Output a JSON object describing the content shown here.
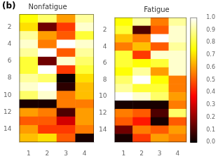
{
  "chart_data": [
    {
      "type": "heatmap",
      "title": "Nonfatigue",
      "annotations": [
        "(b)"
      ],
      "x": [
        1,
        2,
        3,
        4
      ],
      "y": [
        1,
        2,
        3,
        4,
        5,
        6,
        7,
        8,
        9,
        10,
        11,
        12,
        13,
        14,
        15
      ],
      "xlim": [
        0.5,
        4.5
      ],
      "xticks": [
        1,
        2,
        3,
        4
      ],
      "ylim": [
        15.5,
        0.5
      ],
      "yticks": [
        2,
        4,
        6,
        8,
        10,
        12,
        14
      ],
      "grid": false,
      "color_range": [
        0,
        1
      ],
      "values": [
        [
          0.75,
          0.85,
          0.6,
          0.9
        ],
        [
          0.7,
          0.15,
          0.45,
          0.95
        ],
        [
          0.9,
          0.6,
          0.5,
          0.8
        ],
        [
          0.95,
          0.55,
          1.0,
          0.95
        ],
        [
          0.9,
          1.0,
          0.5,
          0.9
        ],
        [
          0.8,
          0.15,
          0.95,
          0.85
        ],
        [
          0.8,
          1.0,
          0.45,
          0.8
        ],
        [
          0.9,
          0.85,
          0.0,
          0.7
        ],
        [
          0.95,
          1.0,
          0.05,
          0.65
        ],
        [
          0.85,
          0.95,
          0.55,
          0.65
        ],
        [
          0.02,
          0.02,
          0.55,
          0.55
        ],
        [
          0.6,
          0.55,
          0.1,
          0.6
        ],
        [
          0.5,
          0.5,
          0.3,
          0.6
        ],
        [
          0.6,
          0.45,
          0.45,
          0.55
        ],
        [
          0.65,
          0.7,
          0.5,
          0.02
        ]
      ]
    },
    {
      "type": "heatmap",
      "title": "Fatigue",
      "x": [
        1,
        2,
        3,
        4
      ],
      "y": [
        1,
        2,
        3,
        4,
        5,
        6,
        7,
        8,
        9,
        10,
        11,
        12,
        13,
        14,
        15
      ],
      "xlim": [
        0.5,
        4.5
      ],
      "xticks": [
        1,
        2,
        3,
        4
      ],
      "ylim": [
        15.5,
        0.5
      ],
      "yticks": [
        2,
        4,
        6,
        8,
        10,
        12,
        14
      ],
      "grid": false,
      "color_range": [
        0,
        1
      ],
      "color_ticks": [
        {
          "value": 0,
          "label": "0.0"
        },
        0.1,
        0.2,
        0.3,
        0.4,
        0.5,
        0.6,
        0.7,
        0.8,
        0.9,
        {
          "value": 1.0,
          "label": "1.0"
        }
      ],
      "values": [
        [
          0.75,
          0.9,
          0.55,
          0.9
        ],
        [
          0.8,
          0.1,
          0.5,
          0.95
        ],
        [
          0.65,
          0.55,
          1.0,
          0.95
        ],
        [
          0.55,
          0.65,
          0.5,
          0.9
        ],
        [
          0.8,
          0.45,
          0.95,
          0.95
        ],
        [
          0.8,
          0.75,
          0.8,
          0.95
        ],
        [
          0.75,
          0.9,
          0.6,
          0.95
        ],
        [
          0.85,
          1.0,
          0.75,
          0.55
        ],
        [
          0.9,
          0.8,
          0.8,
          0.55
        ],
        [
          1.0,
          0.95,
          0.85,
          0.6
        ],
        [
          0.02,
          0.02,
          0.02,
          0.55
        ],
        [
          0.55,
          0.5,
          0.1,
          0.85
        ],
        [
          0.5,
          0.4,
          0.02,
          0.5
        ],
        [
          0.15,
          0.55,
          0.5,
          0.6
        ],
        [
          0.02,
          0.45,
          0.6,
          0.55
        ]
      ]
    }
  ]
}
